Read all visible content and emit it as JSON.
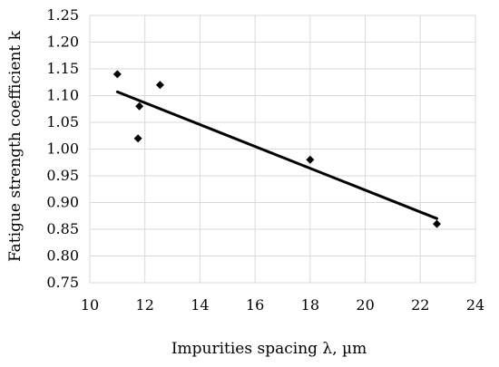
{
  "chart_data": {
    "type": "scatter",
    "title": "",
    "xlabel": "Impurities spacing λ, µm",
    "ylabel": "Fatigue strength coefficient k",
    "xlim": [
      10,
      24
    ],
    "ylim": [
      0.75,
      1.25
    ],
    "x_ticks": [
      10,
      12,
      14,
      16,
      18,
      20,
      22,
      24
    ],
    "y_ticks": [
      0.75,
      0.8,
      0.85,
      0.9,
      0.95,
      1.0,
      1.05,
      1.1,
      1.15,
      1.2,
      1.25
    ],
    "x_tick_labels": [
      "10",
      "12",
      "14",
      "16",
      "18",
      "20",
      "22",
      "24"
    ],
    "y_tick_labels": [
      "0.75",
      "0.80",
      "0.85",
      "0.90",
      "0.95",
      "1.00",
      "1.05",
      "1.10",
      "1.15",
      "1.20",
      "1.25"
    ],
    "grid": true,
    "legend": "none",
    "marker": "diamond",
    "marker_color": "#000000",
    "series": [
      {
        "x": [
          11.0,
          11.8,
          11.75,
          12.55,
          18.0,
          22.6
        ],
        "y": [
          1.14,
          1.08,
          1.02,
          1.12,
          0.98,
          0.86
        ]
      }
    ],
    "trendline": {
      "x": [
        11.0,
        22.6
      ],
      "y": [
        1.107,
        0.87
      ],
      "color": "#000000"
    }
  }
}
